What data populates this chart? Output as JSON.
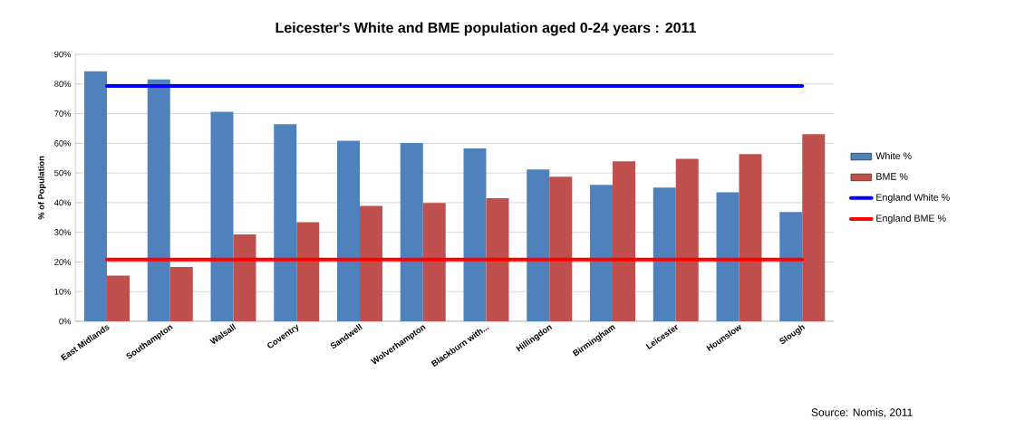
{
  "chart_data": {
    "type": "bar",
    "title": "Leicester's White and BME population aged 0-24 years : 2011",
    "ylabel": "% of Population",
    "annotations": [
      "Source: Nomis, 2011"
    ],
    "categories": [
      "East Midlands",
      "Southampton",
      "Walsall",
      "Coventry",
      "Sandwell",
      "Wolverhampton",
      "Blackburn with...",
      "Hillingdon",
      "Birmingham",
      "Leicester",
      "Hounslow",
      "Slough"
    ],
    "series": [
      {
        "name": "White %",
        "color": "#4f81bd",
        "values": [
          84.3,
          81.5,
          70.6,
          66.4,
          60.9,
          60.1,
          58.3,
          51.2,
          46.0,
          45.1,
          43.5,
          36.8
        ]
      },
      {
        "name": "BME %",
        "color": "#c0504d",
        "values": [
          15.4,
          18.3,
          29.3,
          33.4,
          38.9,
          39.9,
          41.5,
          48.7,
          53.9,
          54.8,
          56.4,
          63.1
        ]
      },
      {
        "name": "England White %",
        "type": "line",
        "color": "#0000ff",
        "values": [
          79.3,
          79.3,
          79.3,
          79.3,
          79.3,
          79.3,
          79.3,
          79.3,
          79.3,
          79.3,
          79.3,
          79.3
        ]
      },
      {
        "name": "England BME %",
        "type": "line",
        "color": "#ff0000",
        "values": [
          20.8,
          20.8,
          20.8,
          20.8,
          20.8,
          20.8,
          20.8,
          20.8,
          20.8,
          20.8,
          20.8,
          20.8
        ]
      }
    ],
    "ylim": [
      0,
      90
    ],
    "yticks": [
      {
        "value": 0,
        "label": "0%"
      },
      {
        "value": 10,
        "label": "10%"
      },
      {
        "value": 20,
        "label": "20%"
      },
      {
        "value": 30,
        "label": "30%"
      },
      {
        "value": 40,
        "label": "40%"
      },
      {
        "value": 50,
        "label": "50%"
      },
      {
        "value": 60,
        "label": "60%"
      },
      {
        "value": 70,
        "label": "70%"
      },
      {
        "value": 80,
        "label": "80%"
      },
      {
        "value": 90,
        "label": "90%"
      }
    ],
    "grid": "y",
    "legend": "right"
  }
}
